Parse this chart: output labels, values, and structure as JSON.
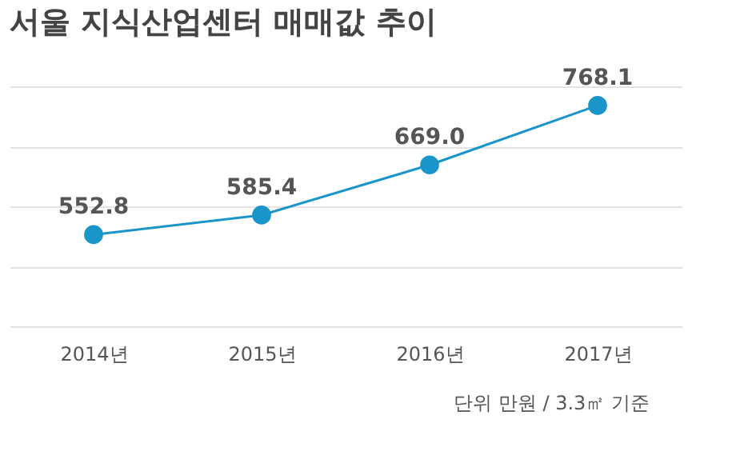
{
  "chart_data": {
    "type": "line",
    "title": "서울 지식산업센터 매매값 추이",
    "categories": [
      "2014년",
      "2015년",
      "2016년",
      "2017년"
    ],
    "series": [
      {
        "color": "#1a95c9",
        "values": [
          552.8,
          585.4,
          669.0,
          768.1
        ],
        "value_labels": [
          "552.8",
          "585.4",
          "669.0",
          "768.1"
        ]
      }
    ],
    "ylim": [
      400,
      800
    ],
    "yticks": [
      {
        "value": 400,
        "label": null
      },
      {
        "value": 500,
        "label": null
      },
      {
        "value": 600,
        "label": null
      },
      {
        "value": 700,
        "label": null
      },
      {
        "value": 800,
        "label": null
      }
    ],
    "tick_labels": "x",
    "grid": "y",
    "marker": "circle",
    "line_style": "solid",
    "legend": false,
    "annotations": [
      "단위 만원 / 3.3㎡ 기준"
    ]
  }
}
